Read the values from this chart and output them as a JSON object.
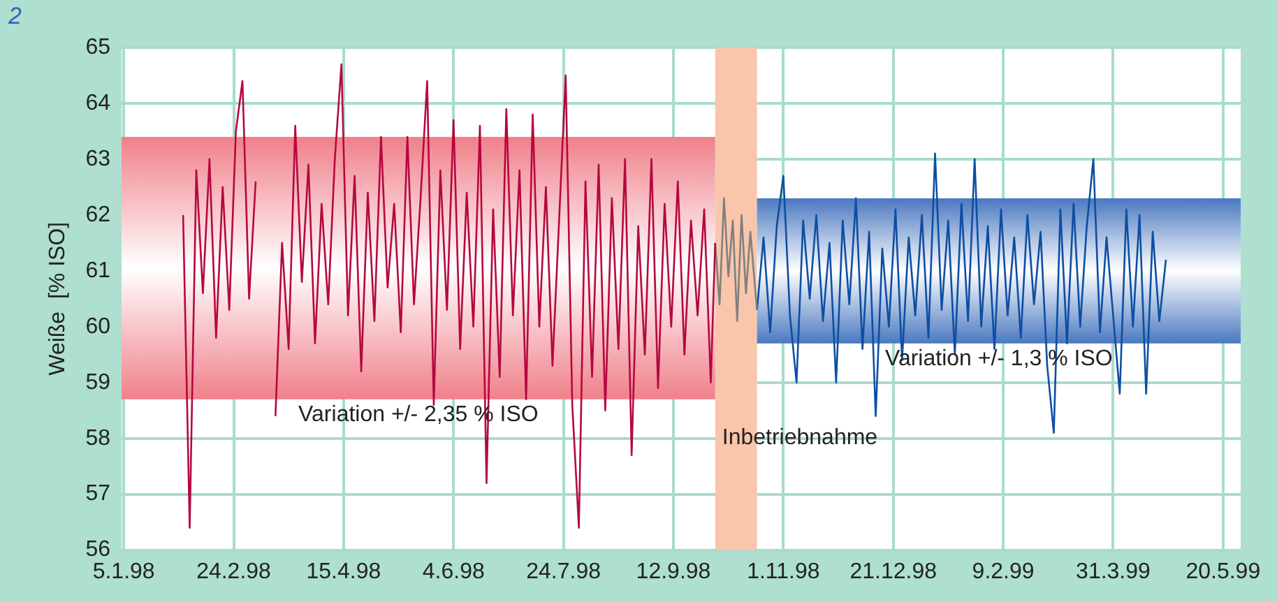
{
  "chart_data": {
    "type": "line",
    "ylabel": "Weiße  [% ISO]",
    "annotations": [
      "2"
    ],
    "xlim": [
      "1998-01-04",
      "1999-05-28"
    ],
    "xticks": [
      {
        "value": "1998-01-05",
        "label": "5.1.98"
      },
      {
        "value": "1998-02-24",
        "label": "24.2.98"
      },
      {
        "value": "1998-04-15",
        "label": "15.4.98"
      },
      {
        "value": "1998-06-04",
        "label": "4.6.98"
      },
      {
        "value": "1998-07-24",
        "label": "24.7.98"
      },
      {
        "value": "1998-09-12",
        "label": "12.9.98"
      },
      {
        "value": "1998-11-01",
        "label": "1.11.98"
      },
      {
        "value": "1998-12-21",
        "label": "21.12.98"
      },
      {
        "value": "1999-02-09",
        "label": "9.2.99"
      },
      {
        "value": "1999-03-31",
        "label": "31.3.99"
      },
      {
        "value": "1999-05-20",
        "label": "20.5.99"
      }
    ],
    "ylim": [
      56,
      65
    ],
    "yticks": [
      56,
      57,
      58,
      59,
      60,
      61,
      62,
      63,
      64,
      65
    ],
    "grid": true,
    "legend": false,
    "bands": [
      {
        "axis": "y",
        "from": 58.7,
        "to": 63.4,
        "label": "Variation +/- 2,35 % ISO",
        "color": "#f0808a"
      },
      {
        "axis": "x",
        "from": "1998-10-01",
        "to": "1998-10-20",
        "label": "Inbetriebnahme",
        "color": "#f9c6ac"
      },
      {
        "axis": "y",
        "from": 59.7,
        "to": 62.3,
        "label": "Variation +/- 1,3 % ISO",
        "color": "#4a78c0"
      }
    ],
    "series": [
      {
        "color": "#b5083f",
        "x": [
          "1998-02-01",
          "1998-02-04",
          "1998-02-07",
          "1998-02-10",
          "1998-02-13",
          "1998-02-16",
          "1998-02-19",
          "1998-02-22",
          "1998-02-25",
          "1998-02-28",
          "1998-03-03",
          "1998-03-06",
          "1998-03-09",
          "1998-03-12",
          "1998-03-15",
          "1998-03-18",
          "1998-03-21",
          "1998-03-24",
          "1998-03-27",
          "1998-03-30",
          "1998-04-02",
          "1998-04-05",
          "1998-04-08",
          "1998-04-11",
          "1998-04-14",
          "1998-04-17",
          "1998-04-20",
          "1998-04-23",
          "1998-04-26",
          "1998-04-29",
          "1998-05-02",
          "1998-05-05",
          "1998-05-08",
          "1998-05-11",
          "1998-05-14",
          "1998-05-17",
          "1998-05-20",
          "1998-05-23",
          "1998-05-26",
          "1998-05-29",
          "1998-06-01",
          "1998-06-04",
          "1998-06-07",
          "1998-06-10",
          "1998-06-13",
          "1998-06-16",
          "1998-06-19",
          "1998-06-22",
          "1998-06-25",
          "1998-06-28",
          "1998-07-01",
          "1998-07-04",
          "1998-07-07",
          "1998-07-10",
          "1998-07-13",
          "1998-07-16",
          "1998-07-19",
          "1998-07-22",
          "1998-07-25",
          "1998-07-28",
          "1998-07-31",
          "1998-08-03",
          "1998-08-06",
          "1998-08-09",
          "1998-08-12",
          "1998-08-15",
          "1998-08-18",
          "1998-08-21",
          "1998-08-24",
          "1998-08-27",
          "1998-08-30",
          "1998-09-02",
          "1998-09-05",
          "1998-09-08",
          "1998-09-11",
          "1998-09-14",
          "1998-09-17",
          "1998-09-20",
          "1998-09-23",
          "1998-09-26",
          "1998-09-29",
          "1998-10-01"
        ],
        "values": [
          62.0,
          56.4,
          62.8,
          60.6,
          63.0,
          59.8,
          62.5,
          60.3,
          63.5,
          64.4,
          60.5,
          62.6,
          null,
          null,
          58.4,
          61.5,
          59.6,
          63.6,
          60.8,
          62.9,
          59.7,
          62.2,
          60.4,
          63.0,
          64.7,
          60.2,
          62.7,
          59.2,
          62.4,
          60.1,
          63.4,
          60.7,
          62.2,
          59.9,
          63.4,
          60.4,
          62.3,
          64.4,
          58.6,
          62.8,
          60.3,
          63.7,
          59.6,
          62.4,
          60.0,
          63.6,
          57.2,
          62.1,
          59.1,
          63.9,
          60.2,
          62.8,
          58.7,
          63.8,
          60.0,
          62.5,
          59.3,
          61.9,
          64.5,
          58.6,
          56.4,
          62.6,
          59.1,
          62.9,
          58.5,
          62.3,
          59.6,
          63.0,
          57.7,
          61.8,
          59.5,
          63.0,
          58.9,
          62.2,
          60.0,
          62.6,
          59.5,
          61.9,
          60.2,
          62.1,
          59.0,
          61.5
        ]
      },
      {
        "color": "#808080",
        "x": [
          "1998-10-01",
          "1998-10-03",
          "1998-10-05",
          "1998-10-07",
          "1998-10-09",
          "1998-10-11",
          "1998-10-13",
          "1998-10-15",
          "1998-10-17",
          "1998-10-20"
        ],
        "values": [
          61.5,
          60.4,
          62.3,
          60.9,
          61.9,
          60.1,
          62.0,
          60.6,
          61.7,
          60.3
        ]
      },
      {
        "color": "#0d4ea3",
        "x": [
          "1998-10-20",
          "1998-10-23",
          "1998-10-26",
          "1998-10-29",
          "1998-11-01",
          "1998-11-04",
          "1998-11-07",
          "1998-11-10",
          "1998-11-13",
          "1998-11-16",
          "1998-11-19",
          "1998-11-22",
          "1998-11-25",
          "1998-11-28",
          "1998-12-01",
          "1998-12-04",
          "1998-12-07",
          "1998-12-10",
          "1998-12-13",
          "1998-12-16",
          "1998-12-19",
          "1998-12-22",
          "1998-12-25",
          "1998-12-28",
          "1998-12-31",
          "1999-01-03",
          "1999-01-06",
          "1999-01-09",
          "1999-01-12",
          "1999-01-15",
          "1999-01-18",
          "1999-01-21",
          "1999-01-24",
          "1999-01-27",
          "1999-01-30",
          "1999-02-02",
          "1999-02-05",
          "1999-02-08",
          "1999-02-11",
          "1999-02-14",
          "1999-02-17",
          "1999-02-20",
          "1999-02-23",
          "1999-02-26",
          "1999-03-01",
          "1999-03-04",
          "1999-03-07",
          "1999-03-10",
          "1999-03-13",
          "1999-03-16",
          "1999-03-19",
          "1999-03-22",
          "1999-03-25",
          "1999-03-28",
          "1999-03-31",
          "1999-04-03",
          "1999-04-06",
          "1999-04-09",
          "1999-04-12",
          "1999-04-15",
          "1999-04-18",
          "1999-04-21",
          "1999-04-24"
        ],
        "values": [
          60.3,
          61.6,
          59.9,
          61.8,
          62.7,
          60.2,
          59.0,
          61.9,
          60.5,
          62.0,
          60.1,
          61.5,
          59.0,
          61.9,
          60.4,
          62.3,
          59.6,
          61.7,
          58.4,
          61.4,
          60.0,
          62.1,
          59.4,
          61.6,
          60.2,
          62.0,
          59.8,
          63.1,
          60.3,
          61.9,
          59.5,
          62.2,
          60.1,
          63.0,
          60.0,
          61.8,
          59.6,
          62.1,
          60.2,
          61.6,
          59.8,
          62.0,
          60.4,
          61.7,
          59.3,
          58.1,
          62.1,
          59.7,
          62.2,
          60.0,
          61.8,
          63.0,
          59.9,
          61.6,
          60.2,
          58.8,
          62.1,
          60.0,
          62.0,
          58.8,
          61.7,
          60.1,
          61.2
        ]
      }
    ]
  }
}
